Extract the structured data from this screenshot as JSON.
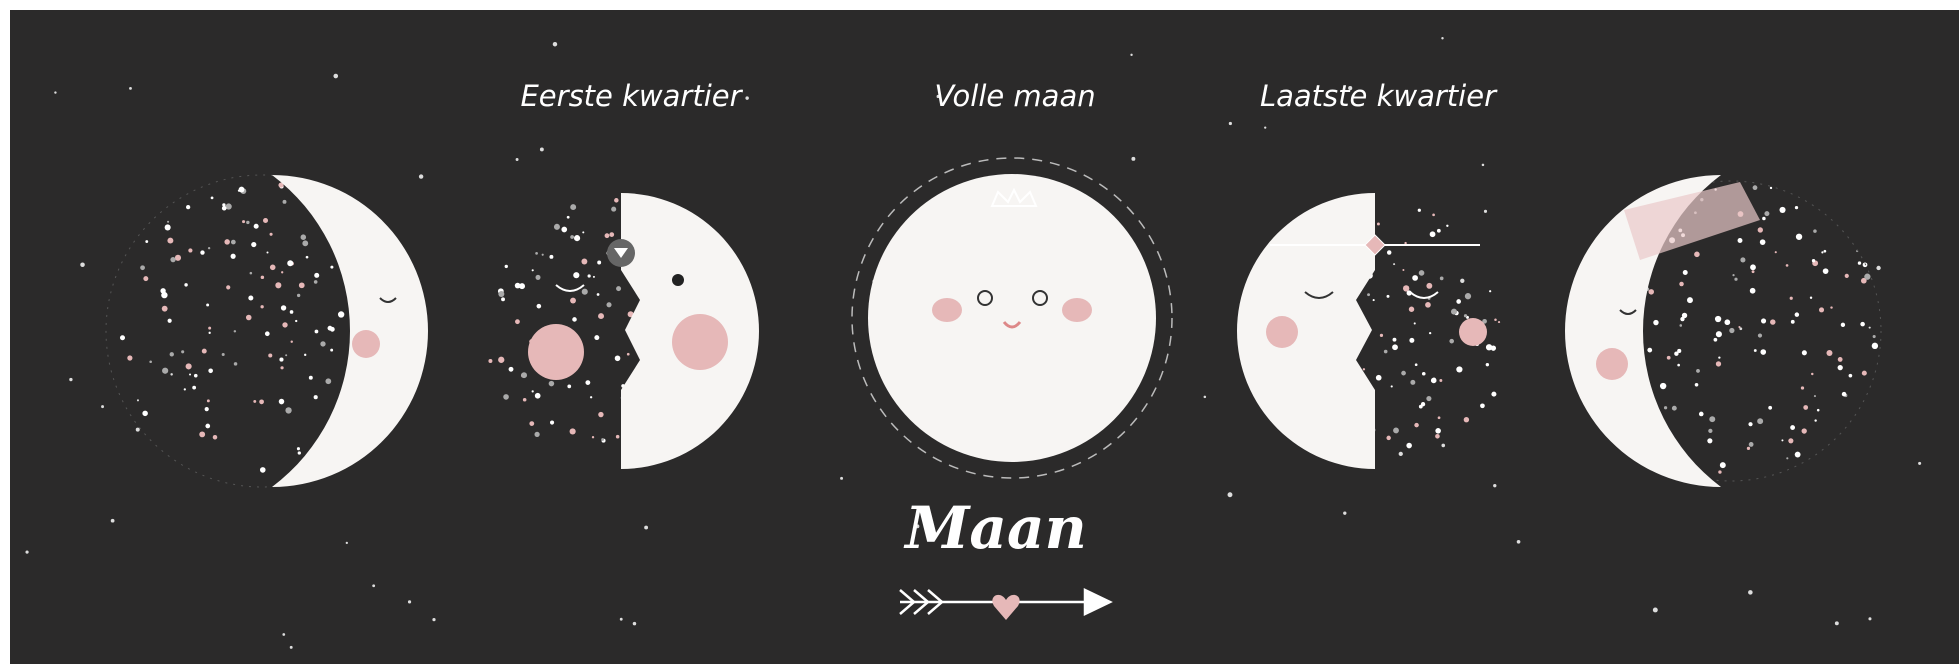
{
  "labels": {
    "first_quarter": "Eerste kwartier",
    "full_moon": "Volle maan",
    "last_quarter": "Laatste kwartier"
  },
  "title": "Maan"
}
